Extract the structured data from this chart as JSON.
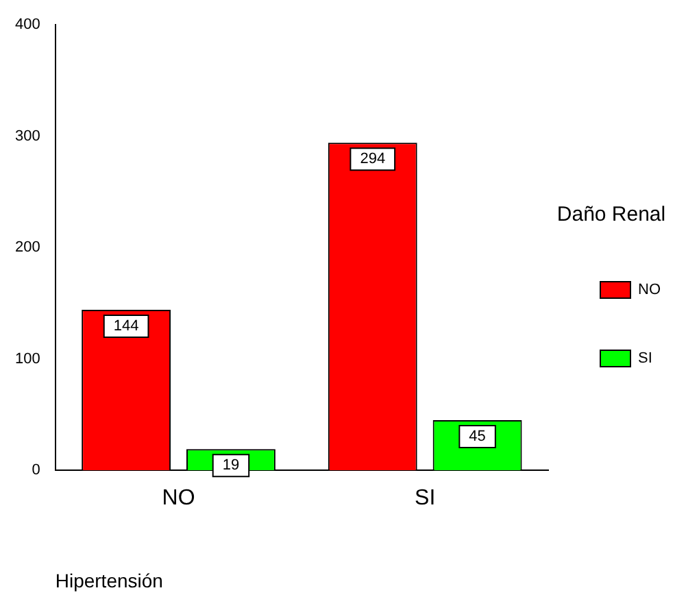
{
  "chart_data": {
    "type": "bar",
    "categories": [
      "NO",
      "SI"
    ],
    "series": [
      {
        "name": "NO",
        "color": "#ff0000",
        "values": [
          144,
          294
        ]
      },
      {
        "name": "SI",
        "color": "#00ff00",
        "values": [
          19,
          45
        ]
      }
    ],
    "ylim": [
      0,
      400
    ],
    "yticks": [
      0,
      100,
      200,
      300,
      400
    ],
    "grid": false,
    "legend": "right",
    "legend_title": "Daño Renal",
    "xlabel": "Hipertensión",
    "data_labels": true
  }
}
